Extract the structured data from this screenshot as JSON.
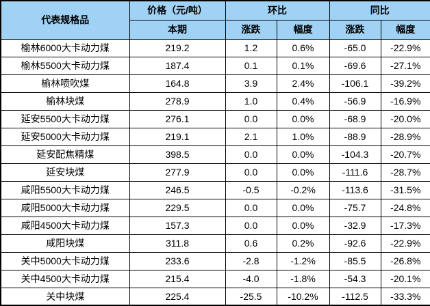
{
  "colors": {
    "header_bg": "#A0D2F5",
    "border": "#000000",
    "text": "#000000",
    "background": "#FFFFFF"
  },
  "chart_data": {
    "type": "table",
    "title": "",
    "layout_hints": {
      "merged_header": true,
      "grid": "all-borders-black",
      "header_fill": "#A0D2F5",
      "unit": "元/吨"
    },
    "header": {
      "product": "代表规格品",
      "price_group": "价格（元/吨）",
      "price_sub": "本期",
      "mom_group": "环比",
      "mom_change": "涨跌",
      "mom_rate": "幅度",
      "yoy_group": "同比",
      "yoy_change": "涨跌",
      "yoy_rate": "幅度"
    },
    "columns": [
      "代表规格品",
      "价格（元/吨）本期",
      "环比-涨跌",
      "环比-幅度",
      "同比-涨跌",
      "同比-幅度"
    ],
    "rows": [
      {
        "name": "榆林6000大卡动力煤",
        "price": "219.2",
        "mom_change": "1.2",
        "mom_rate": "0.6%",
        "yoy_change": "-65.0",
        "yoy_rate": "-22.9%"
      },
      {
        "name": "榆林5500大卡动力煤",
        "price": "187.4",
        "mom_change": "0.1",
        "mom_rate": "0.1%",
        "yoy_change": "-69.6",
        "yoy_rate": "-27.1%"
      },
      {
        "name": "榆林喷吹煤",
        "price": "164.8",
        "mom_change": "3.9",
        "mom_rate": "2.4%",
        "yoy_change": "-106.1",
        "yoy_rate": "-39.2%"
      },
      {
        "name": "榆林块煤",
        "price": "278.9",
        "mom_change": "1.0",
        "mom_rate": "0.4%",
        "yoy_change": "-56.9",
        "yoy_rate": "-16.9%"
      },
      {
        "name": "延安5500大卡动力煤",
        "price": "276.1",
        "mom_change": "0.0",
        "mom_rate": "0.0%",
        "yoy_change": "-68.9",
        "yoy_rate": "-20.0%"
      },
      {
        "name": "延安5000大卡动力煤",
        "price": "219.1",
        "mom_change": "2.1",
        "mom_rate": "1.0%",
        "yoy_change": "-88.9",
        "yoy_rate": "-28.9%"
      },
      {
        "name": "延安配焦精煤",
        "price": "398.5",
        "mom_change": "0.0",
        "mom_rate": "0.0%",
        "yoy_change": "-104.3",
        "yoy_rate": "-20.7%"
      },
      {
        "name": "延安块煤",
        "price": "277.9",
        "mom_change": "0.0",
        "mom_rate": "0.0%",
        "yoy_change": "-111.6",
        "yoy_rate": "-28.7%"
      },
      {
        "name": "咸阳5500大卡动力煤",
        "price": "246.5",
        "mom_change": "-0.5",
        "mom_rate": "-0.2%",
        "yoy_change": "-113.6",
        "yoy_rate": "-31.5%"
      },
      {
        "name": "咸阳5000大卡动力煤",
        "price": "229.5",
        "mom_change": "0.0",
        "mom_rate": "0.0%",
        "yoy_change": "-75.7",
        "yoy_rate": "-24.8%"
      },
      {
        "name": "咸阳4500大卡动力煤",
        "price": "157.3",
        "mom_change": "0.0",
        "mom_rate": "0.0%",
        "yoy_change": "-32.9",
        "yoy_rate": "-17.3%"
      },
      {
        "name": "咸阳块煤",
        "price": "311.8",
        "mom_change": "0.6",
        "mom_rate": "0.2%",
        "yoy_change": "-92.6",
        "yoy_rate": "-22.9%"
      },
      {
        "name": "关中5000大卡动力煤",
        "price": "233.6",
        "mom_change": "-2.8",
        "mom_rate": "-1.2%",
        "yoy_change": "-85.5",
        "yoy_rate": "-26.8%"
      },
      {
        "name": "关中4500大卡动力煤",
        "price": "215.4",
        "mom_change": "-4.0",
        "mom_rate": "-1.8%",
        "yoy_change": "-54.3",
        "yoy_rate": "-20.1%"
      },
      {
        "name": "关中块煤",
        "price": "225.4",
        "mom_change": "-25.5",
        "mom_rate": "-10.2%",
        "yoy_change": "-112.5",
        "yoy_rate": "-33.3%"
      }
    ]
  }
}
